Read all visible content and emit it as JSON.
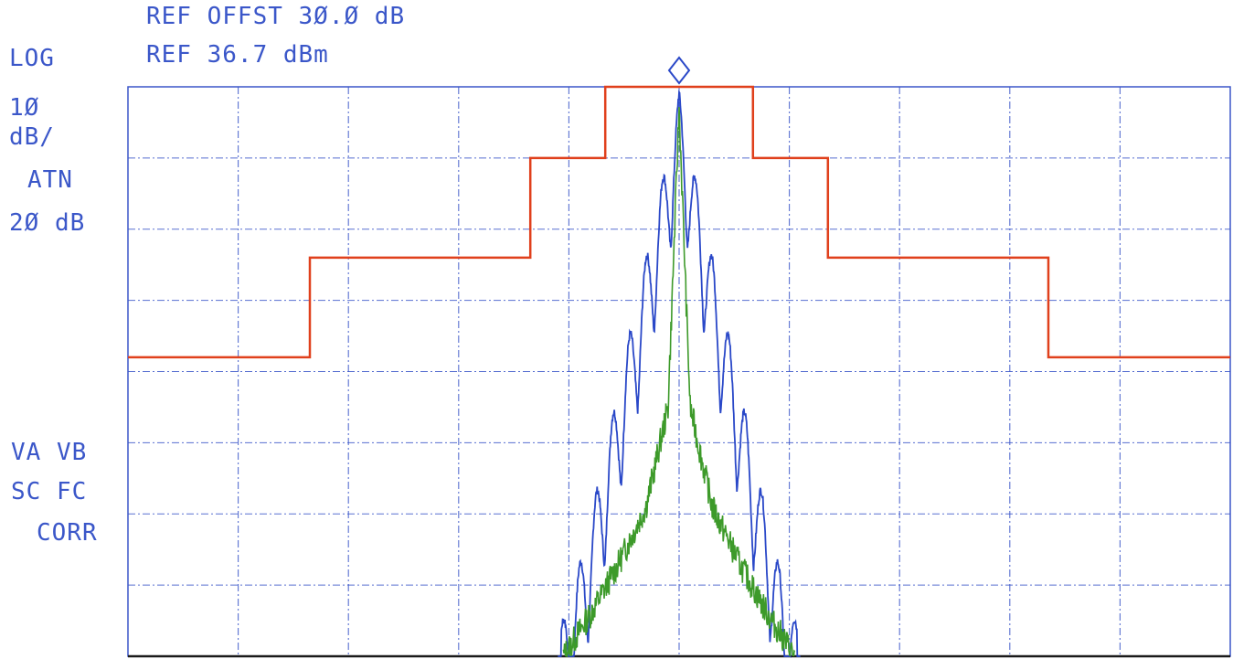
{
  "header": {
    "ref_offset": "REF OFFST 3Ø.Ø dB",
    "ref_level": "REF 36.7 dBm"
  },
  "left_labels": {
    "log": "LOG",
    "scale_value": "1Ø",
    "scale_unit": "dB/",
    "atn": "ATN",
    "atn_value": "2Ø dB",
    "va_vb": "VA VB",
    "sc_fc": "SC FC",
    "corr": "CORR"
  },
  "colors": {
    "text": "#3b57c9",
    "grid": "#3b57c9",
    "mask": "#e0401c",
    "trace_a": "#2a48c8",
    "trace_b": "#3d9a2a",
    "marker": "#2a48c8"
  },
  "chart_data": {
    "type": "line",
    "ref_level_dBm": 36.7,
    "scale_dB_per_div": 10,
    "x_divisions": 10,
    "y_divisions": 8,
    "xlim": [
      0,
      10
    ],
    "ylim": [
      -43.3,
      36.7
    ],
    "marker": {
      "x": 5.0,
      "y": 36.7
    },
    "series": [
      {
        "role": "mask",
        "x": [
          0,
          1.65,
          1.65,
          3.65,
          3.65,
          4.33,
          4.33,
          5.67,
          5.67,
          6.35,
          6.35,
          8.35,
          8.35,
          10
        ],
        "y": [
          -1.3,
          -1.3,
          12.7,
          12.7,
          26.7,
          26.7,
          36.7,
          36.7,
          26.7,
          26.7,
          12.7,
          12.7,
          -1.3,
          -1.3
        ]
      },
      {
        "role": "trace_a_envelope_peaks",
        "x": [
          3.95,
          4.1,
          4.25,
          4.4,
          4.55,
          4.7,
          4.85,
          5.0,
          5.15,
          5.3,
          5.45,
          5.6,
          5.75,
          5.9,
          6.05
        ],
        "y": [
          -38.3,
          -30.3,
          -20.3,
          -9.3,
          1.7,
          12.7,
          23.7,
          35.7,
          23.7,
          12.7,
          1.7,
          -9.3,
          -20.3,
          -30.3,
          -38.3
        ]
      },
      {
        "role": "trace_b_envelope",
        "x": [
          3.95,
          4.2,
          4.45,
          4.7,
          4.9,
          5.0,
          5.1,
          5.3,
          5.55,
          5.8,
          6.05
        ],
        "y": [
          -43.3,
          -37.3,
          -30.3,
          -22.3,
          -8.3,
          33.7,
          -8.3,
          -22.3,
          -30.3,
          -37.3,
          -43.3
        ]
      }
    ]
  }
}
